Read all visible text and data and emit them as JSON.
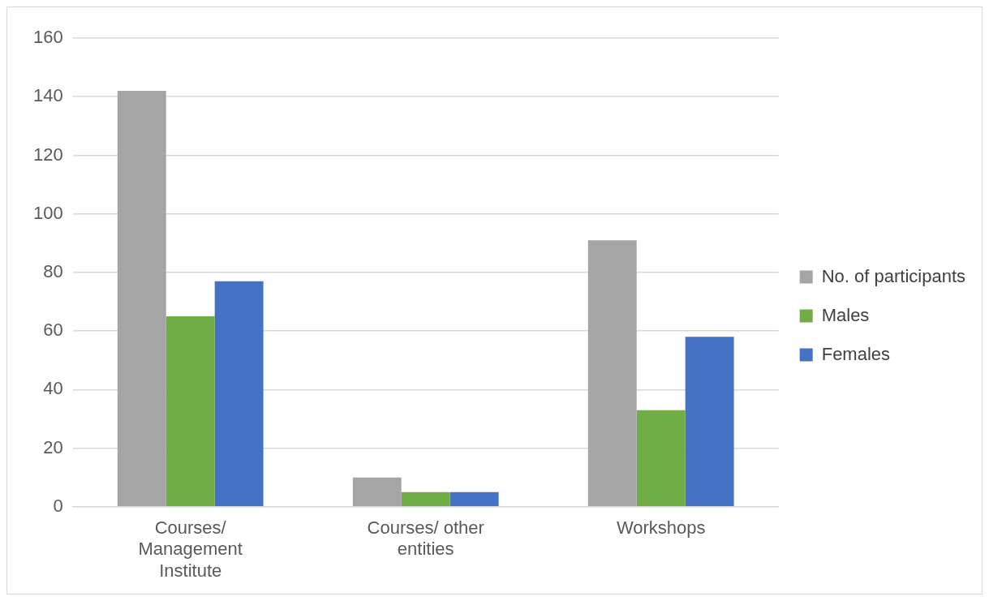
{
  "chart_data": {
    "type": "bar",
    "categories": [
      "Courses/ Management Institute",
      "Courses/ other entities",
      "Workshops"
    ],
    "series": [
      {
        "name": "No. of participants",
        "color": "#a5a5a5",
        "values": [
          142,
          10,
          91
        ]
      },
      {
        "name": "Males",
        "color": "#70ad47",
        "values": [
          65,
          5,
          33
        ]
      },
      {
        "name": "Females",
        "color": "#4472c4",
        "values": [
          77,
          5,
          58
        ]
      }
    ],
    "ylim": [
      0,
      160
    ],
    "yticks": [
      0,
      20,
      40,
      60,
      80,
      100,
      120,
      140,
      160
    ],
    "grid": "y",
    "legend": "right"
  }
}
